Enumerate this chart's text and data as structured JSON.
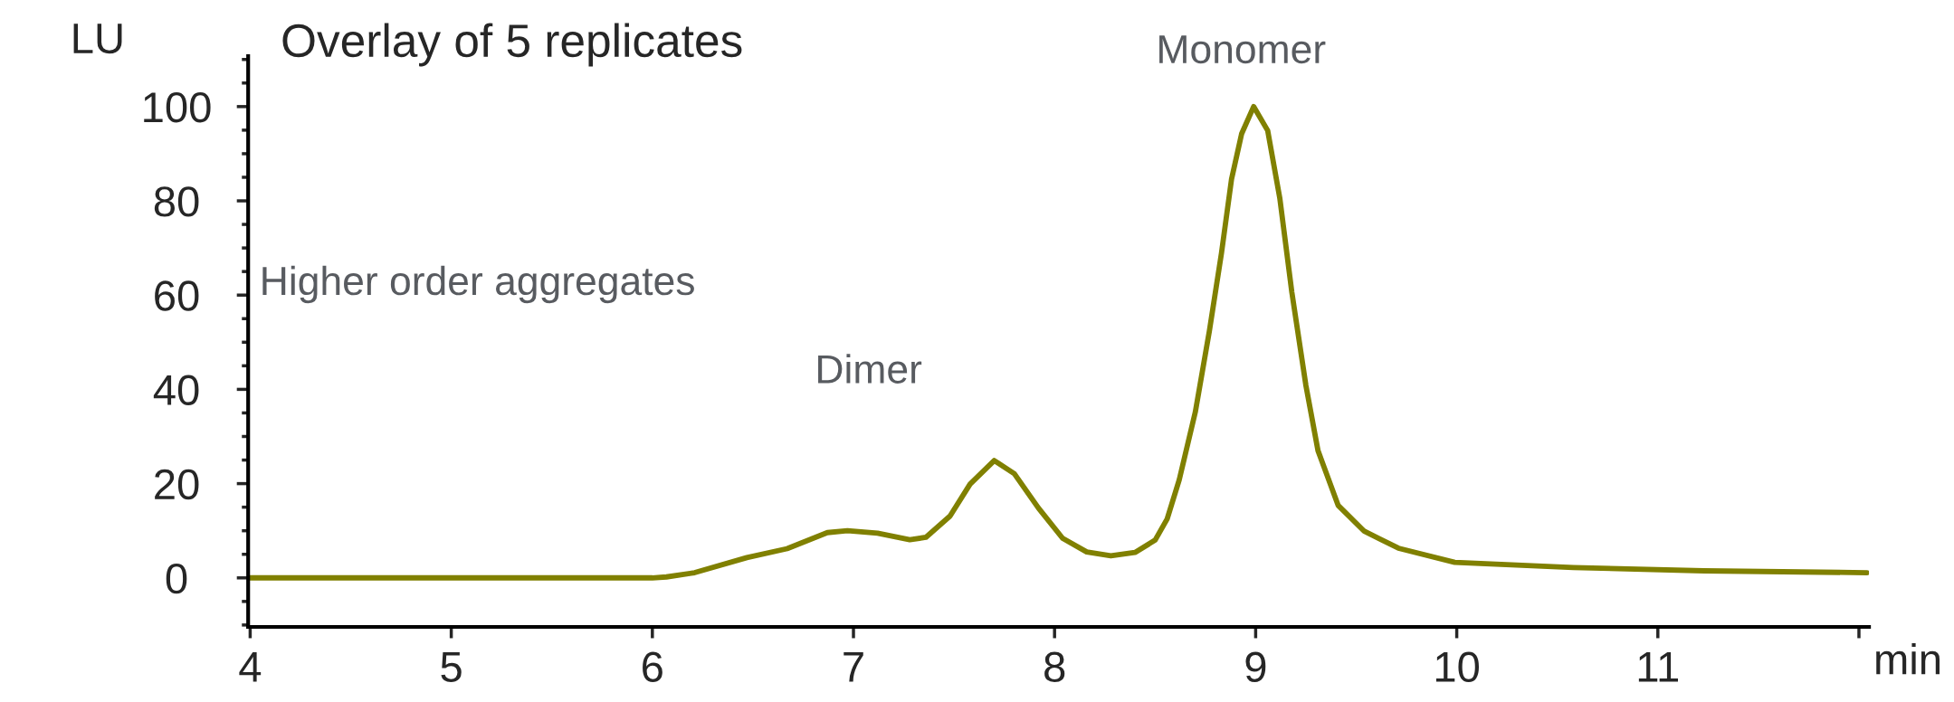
{
  "chart_data": {
    "type": "line",
    "title": "Overlay of 5 replicates",
    "xlabel": "min",
    "ylabel": "LU",
    "x": [
      4.0,
      5.0,
      6.0,
      6.07,
      6.21,
      6.47,
      6.67,
      6.87,
      6.97,
      7.12,
      7.28,
      7.36,
      7.48,
      7.58,
      7.7,
      7.8,
      7.92,
      8.04,
      8.16,
      8.28,
      8.4,
      8.5,
      8.56,
      8.62,
      8.7,
      8.77,
      8.83,
      8.88,
      8.93,
      8.99,
      9.06,
      9.12,
      9.18,
      9.25,
      9.31,
      9.41,
      9.54,
      9.71,
      9.99,
      10.58,
      11.23,
      12.04
    ],
    "series": [
      {
        "color": "#808000",
        "values": [
          0,
          0,
          0,
          0.2,
          1.1,
          4.3,
          6.2,
          9.6,
          10.0,
          9.5,
          8.1,
          8.6,
          13.1,
          19.9,
          24.9,
          22.1,
          14.8,
          8.4,
          5.5,
          4.7,
          5.4,
          8.0,
          12.5,
          20.8,
          35.2,
          52.4,
          68.9,
          84.6,
          94.2,
          100.0,
          94.9,
          80.6,
          60.6,
          40.8,
          27.0,
          15.4,
          9.9,
          6.3,
          3.3,
          2.2,
          1.5,
          1.1
        ]
      }
    ],
    "xlim": [
      3.99,
      12.05
    ],
    "xticks": [
      4,
      5,
      6,
      7,
      8,
      9,
      10,
      11,
      {
        "value": 12,
        "label": null
      }
    ],
    "ylim": [
      -10.4,
      110.7
    ],
    "yticks": [
      0,
      20,
      40,
      60,
      80,
      100
    ],
    "annotations": [
      "Higher order aggregates",
      {
        "text": "Dimer",
        "x": 7.7,
        "y": 24.9
      },
      {
        "text": "Monomer",
        "x": 8.99,
        "y": 100.0
      }
    ],
    "grid": false,
    "legend": false,
    "line_style": "solid",
    "marker": "none"
  }
}
